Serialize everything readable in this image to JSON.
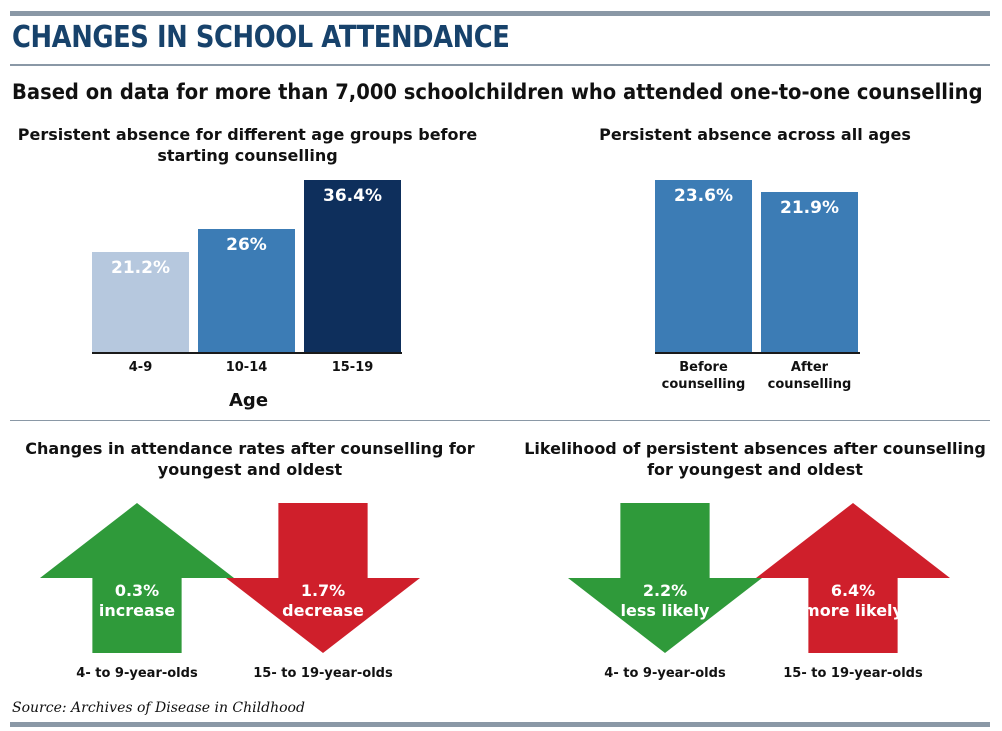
{
  "title": "CHANGES IN SCHOOL ATTENDANCE",
  "subtitle": "Based on data for more than 7,000 schoolchildren who attended one-to-one counselling",
  "source": "Source: Archives of Disease in Childhood",
  "colors": {
    "rule": "#8a98a6",
    "title": "#17426b",
    "green": "#2f9a3a",
    "red": "#cf1f2b"
  },
  "chart_data": [
    {
      "type": "bar",
      "title_lines": [
        "Persistent absence for different age groups before",
        "starting counselling"
      ],
      "categories": [
        "4-9",
        "10-14",
        "15-19"
      ],
      "values": [
        21.2,
        26,
        36.4
      ],
      "labels": [
        "21.2%",
        "26%",
        "36.4%"
      ],
      "colors": [
        "#b6c8de",
        "#3c7cb5",
        "#0e2f5c"
      ],
      "xlabel": "Age",
      "ylim": [
        0,
        36.4
      ]
    },
    {
      "type": "bar",
      "title_lines": [
        "Persistent absence across all ages"
      ],
      "categories": [
        [
          "Before",
          "counselling"
        ],
        [
          "After",
          "counselling"
        ]
      ],
      "values": [
        23.6,
        21.9
      ],
      "labels": [
        "23.6%",
        "21.9%"
      ],
      "colors": [
        "#3c7cb5",
        "#3c7cb5"
      ],
      "ylim": [
        0,
        23.6
      ]
    }
  ],
  "attendance": {
    "title_lines": [
      "Changes in attendance rates after counselling for",
      "youngest and oldest"
    ],
    "items": [
      {
        "direction": "up",
        "color": "green",
        "lines": [
          "0.3%",
          "increase"
        ],
        "group": "4- to 9-year-olds"
      },
      {
        "direction": "down",
        "color": "red",
        "lines": [
          "1.7%",
          "decrease"
        ],
        "group": "15- to 19-year-olds"
      }
    ]
  },
  "likelihood": {
    "title_lines": [
      "Likelihood of persistent absences after counselling",
      "for youngest and oldest"
    ],
    "items": [
      {
        "direction": "down",
        "color": "green",
        "lines": [
          "2.2%",
          "less likely"
        ],
        "group": "4- to 9-year-olds"
      },
      {
        "direction": "up",
        "color": "red",
        "lines": [
          "6.4%",
          "more likely"
        ],
        "group": "15- to 19-year-olds"
      }
    ]
  }
}
